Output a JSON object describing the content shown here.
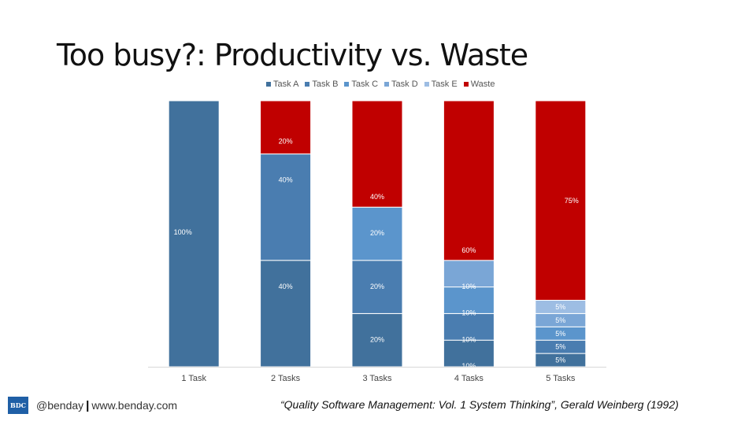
{
  "title": "Too busy?: Productivity vs. Waste",
  "footer": {
    "logo_text": "BDC",
    "handle": "@benday",
    "separator": "|",
    "site": "www.benday.com",
    "citation": "“Quality Software Management: Vol. 1 System Thinking”, Gerald Weinberg (1992)"
  },
  "chart_data": {
    "type": "bar",
    "stacked": true,
    "title": "Too busy?: Productivity vs. Waste",
    "xlabel": "",
    "ylabel": "",
    "ylim": [
      0,
      100
    ],
    "grid": false,
    "legend_position": "top",
    "categories": [
      "1 Task",
      "2 Tasks",
      "3 Tasks",
      "4 Tasks",
      "5 Tasks"
    ],
    "series": [
      {
        "name": "Task A",
        "color": "#41719c",
        "values": [
          100,
          40,
          20,
          10,
          5
        ],
        "labels": [
          "100%",
          "40%",
          "20%",
          "10%",
          "5%"
        ]
      },
      {
        "name": "Task B",
        "color": "#4a7db0",
        "values": [
          null,
          40,
          20,
          10,
          5
        ],
        "labels": [
          "",
          "40%",
          "20%",
          "10%",
          "5%"
        ]
      },
      {
        "name": "Task C",
        "color": "#5b95cc",
        "values": [
          null,
          null,
          20,
          10,
          5
        ],
        "labels": [
          "",
          "",
          "20%",
          "10%",
          "5%"
        ]
      },
      {
        "name": "Task D",
        "color": "#7aa6d6",
        "values": [
          null,
          null,
          null,
          10,
          5
        ],
        "labels": [
          "",
          "",
          "",
          "10%",
          "5%"
        ]
      },
      {
        "name": "Task E",
        "color": "#9dbde3",
        "values": [
          null,
          null,
          null,
          null,
          5
        ],
        "labels": [
          "",
          "",
          "",
          "",
          "5%"
        ]
      },
      {
        "name": "Waste",
        "color": "#c00000",
        "values": [
          null,
          20,
          40,
          60,
          75
        ],
        "labels": [
          "",
          "20%",
          "40%",
          "60%",
          "75%"
        ]
      }
    ]
  }
}
